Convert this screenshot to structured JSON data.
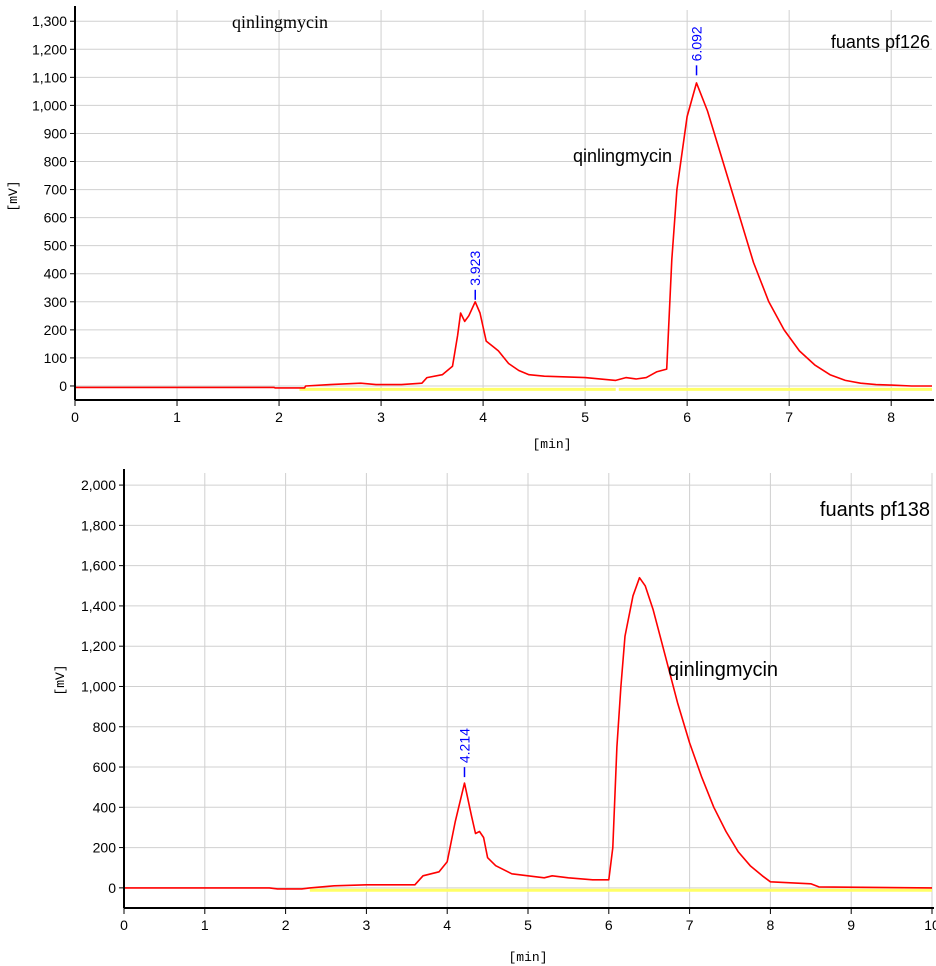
{
  "chart_data": [
    {
      "type": "line",
      "title": "fuants pf126",
      "top_label": "qinlingmycin",
      "xlabel": "[min]",
      "ylabel": "[mV]",
      "xlim": [
        0,
        8.4
      ],
      "ylim": [
        -50,
        1340
      ],
      "x_ticks": [
        0,
        1,
        2,
        3,
        4,
        5,
        6,
        7,
        8
      ],
      "y_ticks": [
        0,
        100,
        200,
        300,
        400,
        500,
        600,
        700,
        800,
        900,
        1000,
        1100,
        1200,
        1300
      ],
      "x_tick_labels": [
        "0",
        "1",
        "2",
        "3",
        "4",
        "5",
        "6",
        "7",
        "8"
      ],
      "y_tick_labels": [
        "0",
        "100",
        "200",
        "300",
        "400",
        "500",
        "600",
        "700",
        "800",
        "900",
        "1,000",
        "1,100",
        "1,200",
        "1,300"
      ],
      "grid": true,
      "colors": {
        "signal": "#ff0000",
        "baseline": "#ffff66",
        "peak_label": "#0000ff",
        "axis": "#000000",
        "grid": "#d0d0d0"
      },
      "peak_labels": [
        {
          "x": 3.923,
          "y": 300,
          "text": "3.923"
        },
        {
          "x": 6.092,
          "y": 1100,
          "text": "6.092"
        }
      ],
      "annotations": [
        {
          "text": "qinlingmycin",
          "x": 5.65,
          "y": 830
        }
      ],
      "baseline_segments": [
        [
          2.2,
          5.3
        ],
        [
          5.33,
          8.4
        ]
      ],
      "series": [
        {
          "x": [
            0,
            1.95,
            1.96,
            2.25,
            2.26,
            2.5,
            2.8,
            2.95,
            3.2,
            3.4,
            3.45,
            3.6,
            3.7,
            3.75,
            3.78,
            3.82,
            3.86,
            3.923,
            3.97,
            4.03,
            4.1,
            4.15,
            4.25,
            4.35,
            4.45,
            4.6,
            5.0,
            5.3,
            5.4,
            5.5,
            5.6,
            5.7,
            5.8,
            5.85,
            5.9,
            6.0,
            6.092,
            6.2,
            6.35,
            6.5,
            6.65,
            6.8,
            6.95,
            7.1,
            7.25,
            7.4,
            7.55,
            7.7,
            7.85,
            8.0,
            8.2,
            8.4
          ],
          "y": [
            -5,
            -5,
            -7,
            -7,
            0,
            5,
            10,
            5,
            5,
            10,
            30,
            40,
            70,
            180,
            260,
            230,
            250,
            300,
            260,
            160,
            140,
            125,
            80,
            55,
            40,
            35,
            30,
            20,
            30,
            25,
            30,
            50,
            60,
            450,
            700,
            960,
            1080,
            980,
            800,
            620,
            440,
            300,
            200,
            125,
            75,
            40,
            20,
            10,
            5,
            3,
            0,
            0
          ]
        }
      ]
    },
    {
      "type": "line",
      "title": "fuants pf138",
      "xlabel": "[min]",
      "ylabel": "[mV]",
      "xlim": [
        0,
        10
      ],
      "ylim": [
        -100,
        2060
      ],
      "x_ticks": [
        0,
        1,
        2,
        3,
        4,
        5,
        6,
        7,
        8,
        9,
        10
      ],
      "y_ticks": [
        0,
        200,
        400,
        600,
        800,
        1000,
        1200,
        1400,
        1600,
        1800,
        2000
      ],
      "x_tick_labels": [
        "0",
        "1",
        "2",
        "3",
        "4",
        "5",
        "6",
        "7",
        "8",
        "9",
        "10"
      ],
      "y_tick_labels": [
        "0",
        "200",
        "400",
        "600",
        "800",
        "1,000",
        "1,200",
        "1,400",
        "1,600",
        "1,800",
        "2,000"
      ],
      "grid": true,
      "colors": {
        "signal": "#ff0000",
        "baseline": "#ffff66",
        "peak_label": "#0000ff",
        "axis": "#000000",
        "grid": "#d0d0d0"
      },
      "peak_labels": [
        {
          "x": 4.214,
          "y": 540,
          "text": "4.214"
        }
      ],
      "annotations": [
        {
          "text": "qinlingmycin",
          "x": 6.7,
          "y": 1080
        }
      ],
      "baseline_segments": [
        [
          2.3,
          10
        ]
      ],
      "series": [
        {
          "x": [
            0,
            1.8,
            1.9,
            2.2,
            2.3,
            2.6,
            3.0,
            3.6,
            3.7,
            3.8,
            3.9,
            4.0,
            4.1,
            4.214,
            4.3,
            4.35,
            4.4,
            4.45,
            4.5,
            4.6,
            4.8,
            5.0,
            5.2,
            5.3,
            5.5,
            5.8,
            6.0,
            6.05,
            6.1,
            6.15,
            6.2,
            6.3,
            6.38,
            6.45,
            6.55,
            6.7,
            6.85,
            7.0,
            7.15,
            7.3,
            7.45,
            7.6,
            7.75,
            7.9,
            8.0,
            8.5,
            8.6,
            10
          ],
          "y": [
            0,
            0,
            -5,
            -5,
            0,
            10,
            15,
            15,
            60,
            70,
            80,
            130,
            330,
            520,
            360,
            270,
            280,
            250,
            150,
            110,
            70,
            60,
            50,
            60,
            50,
            40,
            40,
            200,
            700,
            1000,
            1250,
            1450,
            1540,
            1500,
            1380,
            1150,
            920,
            720,
            550,
            400,
            280,
            180,
            110,
            60,
            30,
            20,
            5,
            0
          ]
        }
      ]
    }
  ]
}
